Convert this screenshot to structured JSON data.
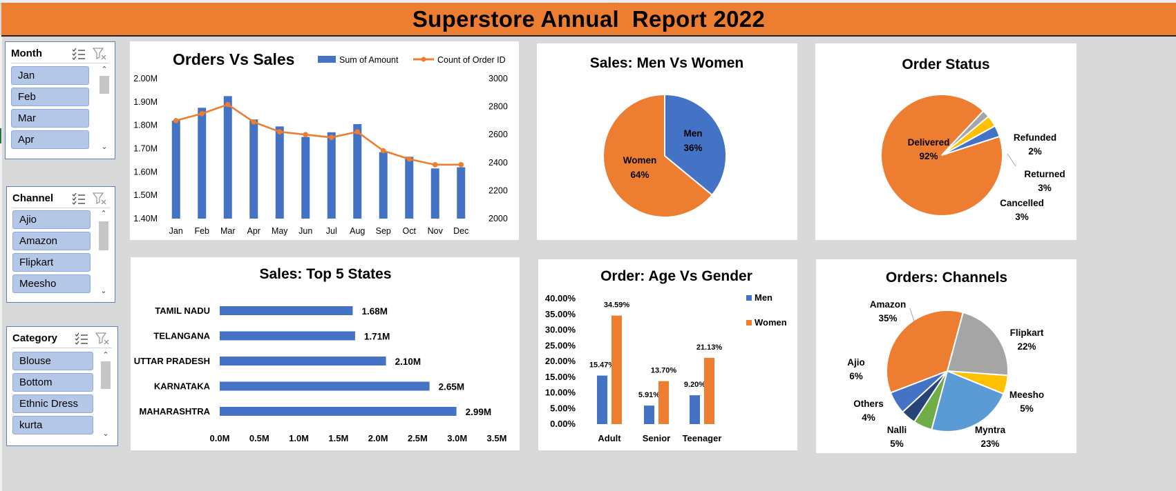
{
  "banner": {
    "title": "Superstore Annual  Report 2022"
  },
  "slicers": {
    "month": {
      "title": "Month",
      "items": [
        "Jan",
        "Feb",
        "Mar",
        "Apr"
      ]
    },
    "channel": {
      "title": "Channel",
      "items": [
        "Ajio",
        "Amazon",
        "Flipkart",
        "Meesho"
      ]
    },
    "category": {
      "title": "Category",
      "items": [
        "Blouse",
        "Bottom",
        "Ethnic Dress",
        "kurta"
      ]
    }
  },
  "colors": {
    "blue": "#4472c4",
    "orange": "#ed7d31",
    "gray": "#a5a5a5",
    "yellow": "#ffc000",
    "lightblue": "#5b9bd5",
    "green": "#70ad47",
    "navy": "#264478",
    "banner": "#ed7d31"
  },
  "chart_data": [
    {
      "id": "orders-vs-sales",
      "type": "bar",
      "title": "Orders Vs Sales",
      "categories": [
        "Jan",
        "Feb",
        "Mar",
        "Apr",
        "May",
        "Jun",
        "Jul",
        "Aug",
        "Sep",
        "Oct",
        "Nov",
        "Dec"
      ],
      "series": [
        {
          "name": "Sum of Amount",
          "type": "bar",
          "axis": "left",
          "values": [
            1.82,
            1.875,
            1.925,
            1.825,
            1.795,
            1.75,
            1.77,
            1.805,
            1.685,
            1.665,
            1.615,
            1.62
          ]
        },
        {
          "name": "Count of Order ID",
          "type": "line",
          "axis": "right",
          "values": [
            2700,
            2750,
            2815,
            2690,
            2620,
            2600,
            2580,
            2620,
            2485,
            2425,
            2385,
            2385
          ]
        }
      ],
      "left_axis": {
        "ticks": [
          "1.40M",
          "1.50M",
          "1.60M",
          "1.70M",
          "1.80M",
          "1.90M",
          "2.00M"
        ],
        "ylim": [
          1.4,
          2.0
        ]
      },
      "right_axis": {
        "ticks": [
          "2000",
          "2200",
          "2400",
          "2600",
          "2800",
          "3000"
        ],
        "ylim": [
          2000,
          3000
        ]
      },
      "legend": "top-right"
    },
    {
      "id": "men-vs-women",
      "type": "pie",
      "title": "Sales: Men Vs Women",
      "slices": [
        {
          "name": "Men",
          "value": 36,
          "label": "36%",
          "color": "#4472c4"
        },
        {
          "name": "Women",
          "value": 64,
          "label": "64%",
          "color": "#ed7d31"
        }
      ]
    },
    {
      "id": "order-status",
      "type": "pie",
      "title": "Order Status",
      "slices": [
        {
          "name": "Delivered",
          "value": 92,
          "label": "92%",
          "color": "#ed7d31"
        },
        {
          "name": "Refunded",
          "value": 2,
          "label": "2%",
          "color": "#a5a5a5"
        },
        {
          "name": "Returned",
          "value": 3,
          "label": "3%",
          "color": "#ffc000"
        },
        {
          "name": "Cancelled",
          "value": 3,
          "label": "3%",
          "color": "#4472c4"
        }
      ]
    },
    {
      "id": "top-5-states",
      "type": "bar",
      "orientation": "horizontal",
      "title": "Sales: Top 5 States",
      "categories": [
        "TAMIL NADU",
        "TELANGANA",
        "UTTAR PRADESH",
        "KARNATAKA",
        "MAHARASHTRA"
      ],
      "values": [
        1.68,
        1.71,
        2.1,
        2.65,
        2.99
      ],
      "data_labels": [
        "1.68M",
        "1.71M",
        "2.10M",
        "2.65M",
        "2.99M"
      ],
      "x_ticks": [
        "0.0M",
        "0.5M",
        "1.0M",
        "1.5M",
        "2.0M",
        "2.5M",
        "3.0M",
        "3.5M"
      ],
      "xlim": [
        0,
        3.5
      ]
    },
    {
      "id": "age-vs-gender",
      "type": "bar",
      "title": "Order: Age Vs Gender",
      "categories": [
        "Adult",
        "Senior",
        "Teenager"
      ],
      "series": [
        {
          "name": "Men",
          "values": [
            15.47,
            5.91,
            9.2
          ],
          "labels": [
            "15.47%",
            "5.91%",
            "9.20%"
          ]
        },
        {
          "name": "Women",
          "values": [
            34.59,
            13.7,
            21.13
          ],
          "labels": [
            "34.59%",
            "13.70%",
            "21.13%"
          ]
        }
      ],
      "y_ticks": [
        "0.00%",
        "5.00%",
        "10.00%",
        "15.00%",
        "20.00%",
        "25.00%",
        "30.00%",
        "35.00%",
        "40.00%"
      ],
      "ylim": [
        0,
        40
      ],
      "legend": "right"
    },
    {
      "id": "orders-channels",
      "type": "pie",
      "title": "Orders: Channels",
      "slices": [
        {
          "name": "Flipkart",
          "value": 22,
          "label": "22%",
          "color": "#a5a5a5"
        },
        {
          "name": "Meesho",
          "value": 5,
          "label": "5%",
          "color": "#ffc000"
        },
        {
          "name": "Myntra",
          "value": 23,
          "label": "23%",
          "color": "#5b9bd5"
        },
        {
          "name": "Nalli",
          "value": 5,
          "label": "5%",
          "color": "#70ad47"
        },
        {
          "name": "Others",
          "value": 4,
          "label": "4%",
          "color": "#264478"
        },
        {
          "name": "Ajio",
          "value": 6,
          "label": "6%",
          "color": "#4472c4"
        },
        {
          "name": "Amazon",
          "value": 35,
          "label": "35%",
          "color": "#ed7d31"
        }
      ]
    }
  ]
}
